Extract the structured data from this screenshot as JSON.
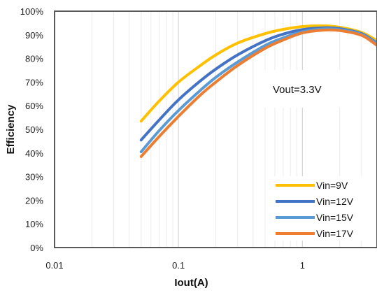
{
  "chart_data": {
    "type": "line",
    "title": "",
    "xlabel": "Iout(A)",
    "ylabel": "Efficiency",
    "x_scale": "log",
    "xlim": [
      0.01,
      4
    ],
    "ylim": [
      0,
      100
    ],
    "x_ticks": [
      "0.01",
      "0.1",
      "1"
    ],
    "y_ticks": [
      "0%",
      "10%",
      "20%",
      "30%",
      "40%",
      "50%",
      "60%",
      "70%",
      "80%",
      "90%",
      "100%"
    ],
    "grid": "vertical",
    "legend_position": "bottom-right",
    "annotation": "Vout=3.3V",
    "x": [
      0.05,
      0.07,
      0.1,
      0.15,
      0.2,
      0.3,
      0.5,
      0.7,
      1.0,
      1.5,
      2.0,
      3.0,
      4.0
    ],
    "series": [
      {
        "name": "Vin=9V",
        "color": "#ffc000",
        "values": [
          53.5,
          62,
          70,
          77,
          81.5,
          86.5,
          90.5,
          92.3,
          93.5,
          93.8,
          93.2,
          91,
          87.5
        ]
      },
      {
        "name": "Vin=12V",
        "color": "#4472c4",
        "values": [
          45.5,
          54,
          62.5,
          70.5,
          75.5,
          81.5,
          87.5,
          90.3,
          92.2,
          93,
          92.6,
          90.5,
          86.5
        ]
      },
      {
        "name": "Vin=15V",
        "color": "#5b9bd5",
        "values": [
          40.5,
          49.5,
          58,
          66.5,
          72,
          78.5,
          85.5,
          88.7,
          91.3,
          92.5,
          92.2,
          90.2,
          86.2
        ]
      },
      {
        "name": "Vin=17V",
        "color": "#ed7d31",
        "values": [
          38.5,
          47,
          55.5,
          64.5,
          70,
          77,
          84.3,
          87.8,
          90.8,
          92,
          91.8,
          89.8,
          85.5
        ]
      }
    ]
  }
}
